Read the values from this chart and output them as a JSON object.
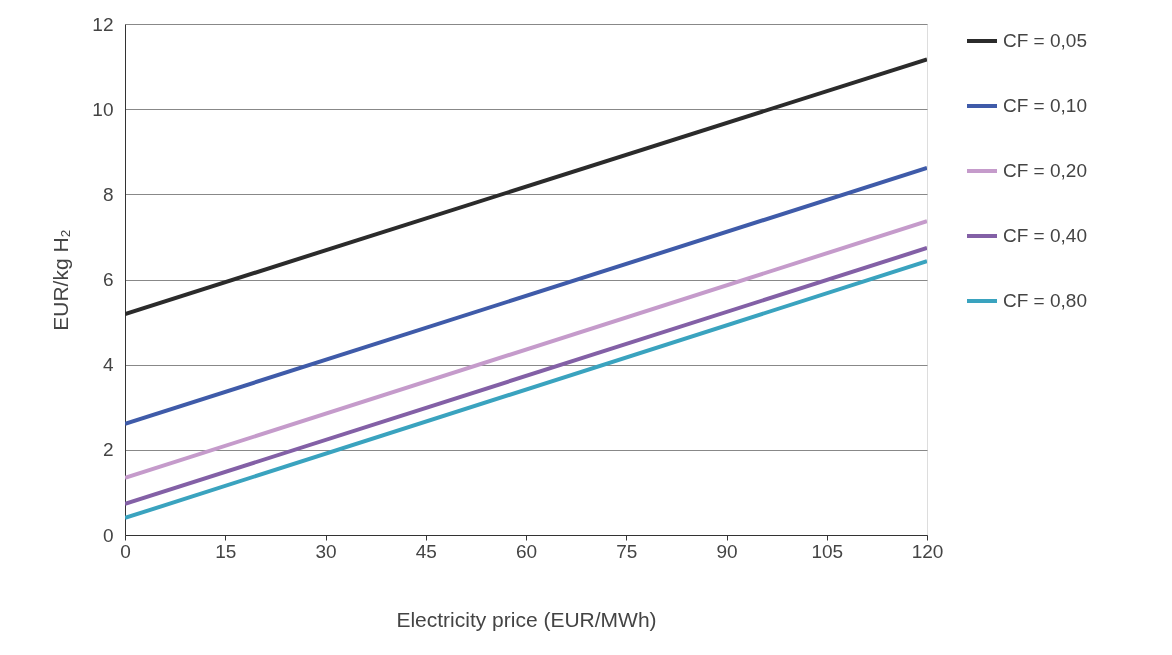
{
  "chart_data": {
    "type": "line",
    "xlabel": "Electricity price (EUR/MWh)",
    "ylabel": "EUR/kg H₂",
    "x": [
      0,
      120
    ],
    "series": [
      {
        "name": "CF = 0,05",
        "color": "#2b2b2b",
        "values": [
          5.19,
          11.17
        ]
      },
      {
        "name": "CF = 0,10",
        "color": "#3f5ba9",
        "values": [
          2.61,
          8.62
        ]
      },
      {
        "name": "CF = 0,20",
        "color": "#c59bcb",
        "values": [
          1.34,
          7.37
        ]
      },
      {
        "name": "CF = 0,40",
        "color": "#8360a6",
        "values": [
          0.73,
          6.74
        ]
      },
      {
        "name": "CF = 0,80",
        "color": "#3aa3bf",
        "values": [
          0.4,
          6.43
        ]
      }
    ],
    "xlim": [
      0,
      120
    ],
    "xticks": [
      0,
      15,
      30,
      45,
      60,
      75,
      90,
      105,
      120
    ],
    "ylim": [
      0,
      12
    ],
    "yticks": [
      0,
      2,
      4,
      6,
      8,
      10,
      12
    ],
    "grid": "y",
    "legend": "right",
    "marker": "none",
    "line_style": "solid"
  }
}
